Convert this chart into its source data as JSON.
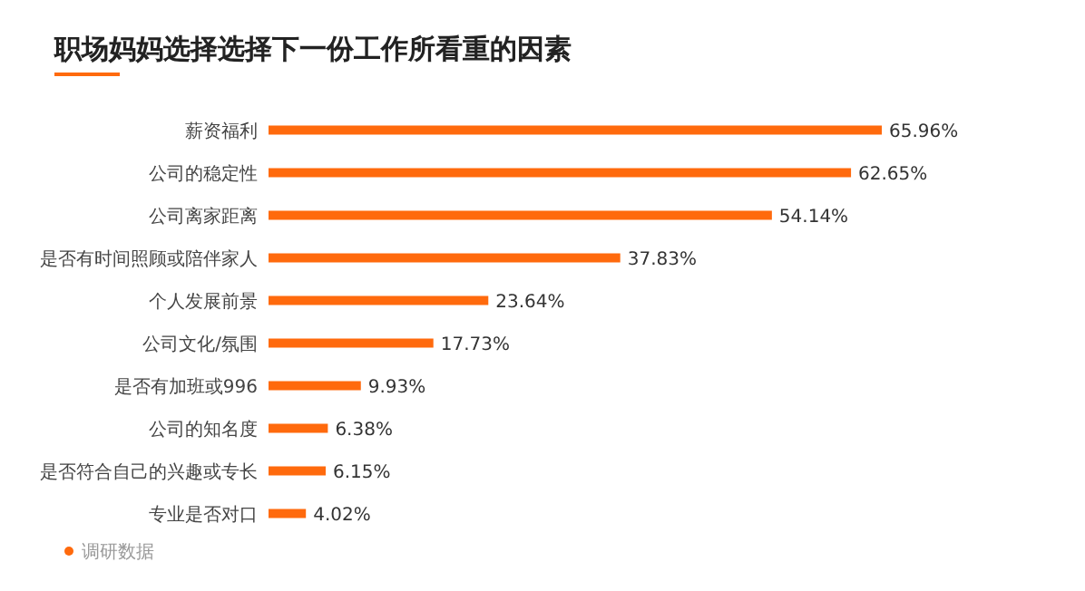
{
  "chart_data": {
    "type": "bar",
    "orientation": "horizontal",
    "title": "职场妈妈选择选择下一份工作所看重的因素",
    "categories": [
      "薪资福利",
      "公司的稳定性",
      "公司离家距离",
      "是否有时间照顾或陪伴家人",
      "个人发展前景",
      "公司文化/氛围",
      "是否有加班或996",
      "公司的知名度",
      "是否符合自己的兴趣或专长",
      "专业是否对口"
    ],
    "values": [
      65.96,
      62.65,
      54.14,
      37.83,
      23.64,
      17.73,
      9.93,
      6.38,
      6.15,
      4.02
    ],
    "value_labels": [
      "65.96%",
      "62.65%",
      "54.14%",
      "37.83%",
      "23.64%",
      "17.73%",
      "9.93%",
      "6.38%",
      "6.15%",
      "4.02%"
    ],
    "color": "#ff6a0d",
    "tick_labels": "y",
    "annotations": [
      "调研数据"
    ]
  }
}
